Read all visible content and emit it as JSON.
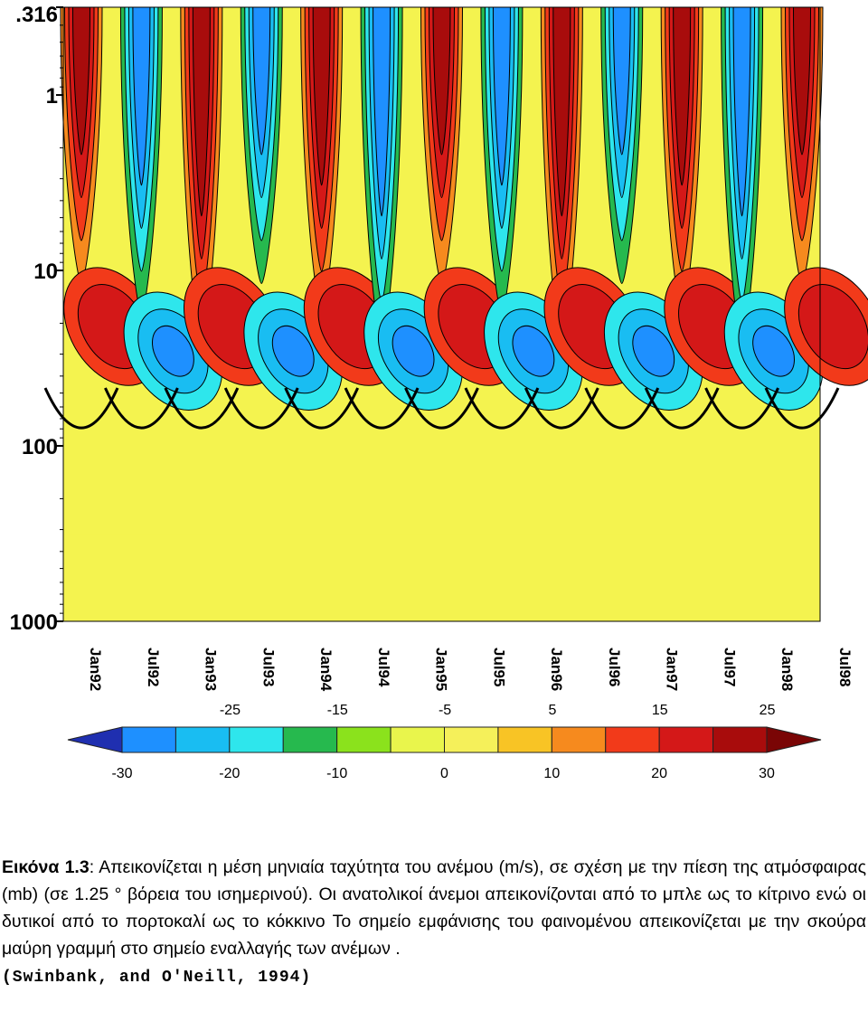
{
  "chart_data": {
    "type": "heatmap",
    "title": "",
    "xlabel": "",
    "ylabel": "",
    "y_scale": "log",
    "y_axis_reversed": true,
    "ylim": [
      0.316,
      1000
    ],
    "y_tick_labels": [
      ".316",
      "1",
      "10",
      "100",
      "1000"
    ],
    "y_tick_values": [
      0.316,
      1,
      10,
      100,
      1000
    ],
    "x_tick_labels": [
      "Jan92",
      "Jul92",
      "Jan93",
      "Jul93",
      "Jan94",
      "Jul94",
      "Jan95",
      "Jul95",
      "Jan96",
      "Jul96",
      "Jan97",
      "Jul97",
      "Jan98",
      "Jul98"
    ],
    "x_tick_values": [
      "1992-01",
      "1992-07",
      "1993-01",
      "1993-07",
      "1994-01",
      "1994-07",
      "1995-01",
      "1995-07",
      "1996-01",
      "1996-07",
      "1997-01",
      "1997-07",
      "1998-01",
      "1998-07"
    ],
    "colorbar": {
      "units": "m/s",
      "upper_labels": [
        "-25",
        "-15",
        "-5",
        "5",
        "15",
        "25"
      ],
      "lower_labels": [
        "-30",
        "-20",
        "-10",
        "0",
        "10",
        "20",
        "30"
      ],
      "levels": [
        -30,
        -25,
        -20,
        -15,
        -10,
        -5,
        0,
        5,
        10,
        15,
        20,
        25,
        30
      ],
      "colors": [
        "#1f2fb0",
        "#1e90ff",
        "#19bdf2",
        "#2ee6ec",
        "#26b94e",
        "#8be21c",
        "#e9f54c",
        "#f5f05a",
        "#f8c425",
        "#f68a1e",
        "#f23a1a",
        "#d41818",
        "#a80c0c",
        "#7a0505"
      ]
    },
    "background_color": "#f4f34f",
    "zero_contour_color": "#000000"
  },
  "caption": {
    "lead": "Εικόνα 1.3",
    "text": ": Απεικονίζεται η μέση μηνιαία ταχύτητα του ανέμου (m/s), σε σχέση με την πίεση της ατμόσφαιρας (mb)  (σε 1.25 ° βόρεια του ισημερινού). Οι ανατολικοί άνεμοι απεικονίζονται από το μπλε ως το  κίτρινο ενώ οι δυτικοί από το πορτοκαλί  ως το κόκκινο Το σημείο εμφάνισης του φαινομένου απεικονίζεται με την σκούρα μαύρη γραμμή στο σημείο εναλλαγής των ανέμων .",
    "source": "(Swinbank, and O'Neill, 1994)"
  }
}
